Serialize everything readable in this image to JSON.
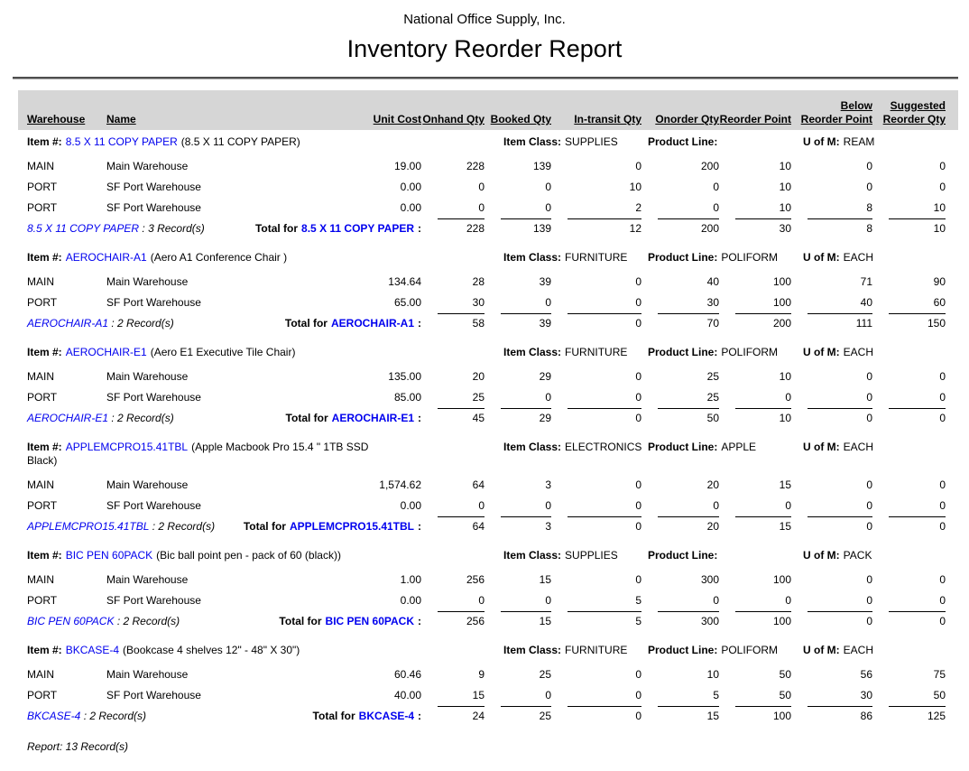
{
  "header": {
    "company": "National Office Supply, Inc.",
    "title": "Inventory Reorder Report"
  },
  "table": {
    "columns": [
      [
        "Warehouse"
      ],
      [
        "Name"
      ],
      [
        "Unit Cost"
      ],
      [
        "Onhand Qty"
      ],
      [
        "Booked Qty"
      ],
      [
        "In-transit Qty"
      ],
      [
        "Onorder Qty"
      ],
      [
        "Reorder Point"
      ],
      [
        "Below",
        "Reorder Point"
      ],
      [
        "Suggested",
        "Reorder Qty"
      ]
    ],
    "labels": {
      "item_prefix": "Item #:",
      "item_class": "Item Class:",
      "product_line": "Product Line:",
      "uom": "U of M:",
      "total_for": "Total for",
      "total_suffix": ":"
    }
  },
  "groups": [
    {
      "code": "8.5 X 11 COPY PAPER",
      "description": "(8.5 X 11 COPY PAPER)",
      "item_class": "SUPPLIES",
      "product_line": "",
      "uom": "REAM",
      "rows": [
        [
          "MAIN",
          "Main Warehouse",
          "19.00",
          "228",
          "139",
          "0",
          "200",
          "10",
          "0",
          "0"
        ],
        [
          "PORT",
          "SF Port Warehouse",
          "0.00",
          "0",
          "0",
          "10",
          "0",
          "10",
          "0",
          "0"
        ],
        [
          "PORT",
          "SF Port Warehouse",
          "0.00",
          "0",
          "0",
          "2",
          "0",
          "10",
          "8",
          "10"
        ]
      ],
      "records_text": " : 3 Record(s)",
      "totals": [
        "228",
        "139",
        "12",
        "200",
        "30",
        "8",
        "10"
      ]
    },
    {
      "code": "AEROCHAIR-A1",
      "description": "(Aero A1 Conference Chair )",
      "item_class": "FURNITURE",
      "product_line": "POLIFORM",
      "uom": "EACH",
      "rows": [
        [
          "MAIN",
          "Main Warehouse",
          "134.64",
          "28",
          "39",
          "0",
          "40",
          "100",
          "71",
          "90"
        ],
        [
          "PORT",
          "SF Port Warehouse",
          "65.00",
          "30",
          "0",
          "0",
          "30",
          "100",
          "40",
          "60"
        ]
      ],
      "records_text": " : 2 Record(s)",
      "totals": [
        "58",
        "39",
        "0",
        "70",
        "200",
        "111",
        "150"
      ]
    },
    {
      "code": "AEROCHAIR-E1",
      "description": "(Aero E1 Executive Tile Chair)",
      "item_class": "FURNITURE",
      "product_line": "POLIFORM",
      "uom": "EACH",
      "rows": [
        [
          "MAIN",
          "Main Warehouse",
          "135.00",
          "20",
          "29",
          "0",
          "25",
          "10",
          "0",
          "0"
        ],
        [
          "PORT",
          "SF Port Warehouse",
          "85.00",
          "25",
          "0",
          "0",
          "25",
          "0",
          "0",
          "0"
        ]
      ],
      "records_text": " : 2 Record(s)",
      "totals": [
        "45",
        "29",
        "0",
        "50",
        "10",
        "0",
        "0"
      ]
    },
    {
      "code": "APPLEMCPRO15.41TBL",
      "description": "(Apple Macbook Pro 15.4 \" 1TB SSD Black)",
      "item_class": "ELECTRONICS",
      "product_line": "APPLE",
      "uom": "EACH",
      "rows": [
        [
          "MAIN",
          "Main Warehouse",
          "1,574.62",
          "64",
          "3",
          "0",
          "20",
          "15",
          "0",
          "0"
        ],
        [
          "PORT",
          "SF Port Warehouse",
          "0.00",
          "0",
          "0",
          "0",
          "0",
          "0",
          "0",
          "0"
        ]
      ],
      "records_text": " : 2 Record(s)",
      "totals": [
        "64",
        "3",
        "0",
        "20",
        "15",
        "0",
        "0"
      ]
    },
    {
      "code": "BIC PEN 60PACK",
      "description": "(Bic ball point pen - pack of 60 (black))",
      "item_class": "SUPPLIES",
      "product_line": "",
      "uom": "PACK",
      "rows": [
        [
          "MAIN",
          "Main Warehouse",
          "1.00",
          "256",
          "15",
          "0",
          "300",
          "100",
          "0",
          "0"
        ],
        [
          "PORT",
          "SF Port Warehouse",
          "0.00",
          "0",
          "0",
          "5",
          "0",
          "0",
          "0",
          "0"
        ]
      ],
      "records_text": " : 2 Record(s)",
      "totals": [
        "256",
        "15",
        "5",
        "300",
        "100",
        "0",
        "0"
      ]
    },
    {
      "code": "BKCASE-4",
      "description": "(Bookcase 4 shelves 12\" - 48\" X 30\")",
      "item_class": "FURNITURE",
      "product_line": "POLIFORM",
      "uom": "EACH",
      "rows": [
        [
          "MAIN",
          "Main Warehouse",
          "60.46",
          "9",
          "25",
          "0",
          "10",
          "50",
          "56",
          "75"
        ],
        [
          "PORT",
          "SF Port Warehouse",
          "40.00",
          "15",
          "0",
          "0",
          "5",
          "50",
          "30",
          "50"
        ]
      ],
      "records_text": " : 2 Record(s)",
      "totals": [
        "24",
        "25",
        "0",
        "15",
        "100",
        "86",
        "125"
      ]
    }
  ],
  "footer": {
    "report_summary": "Report: 13 Record(s)"
  },
  "colors": {
    "link_blue": "#0000ee",
    "header_bar": "#d6d6d6",
    "text": "#000000"
  }
}
